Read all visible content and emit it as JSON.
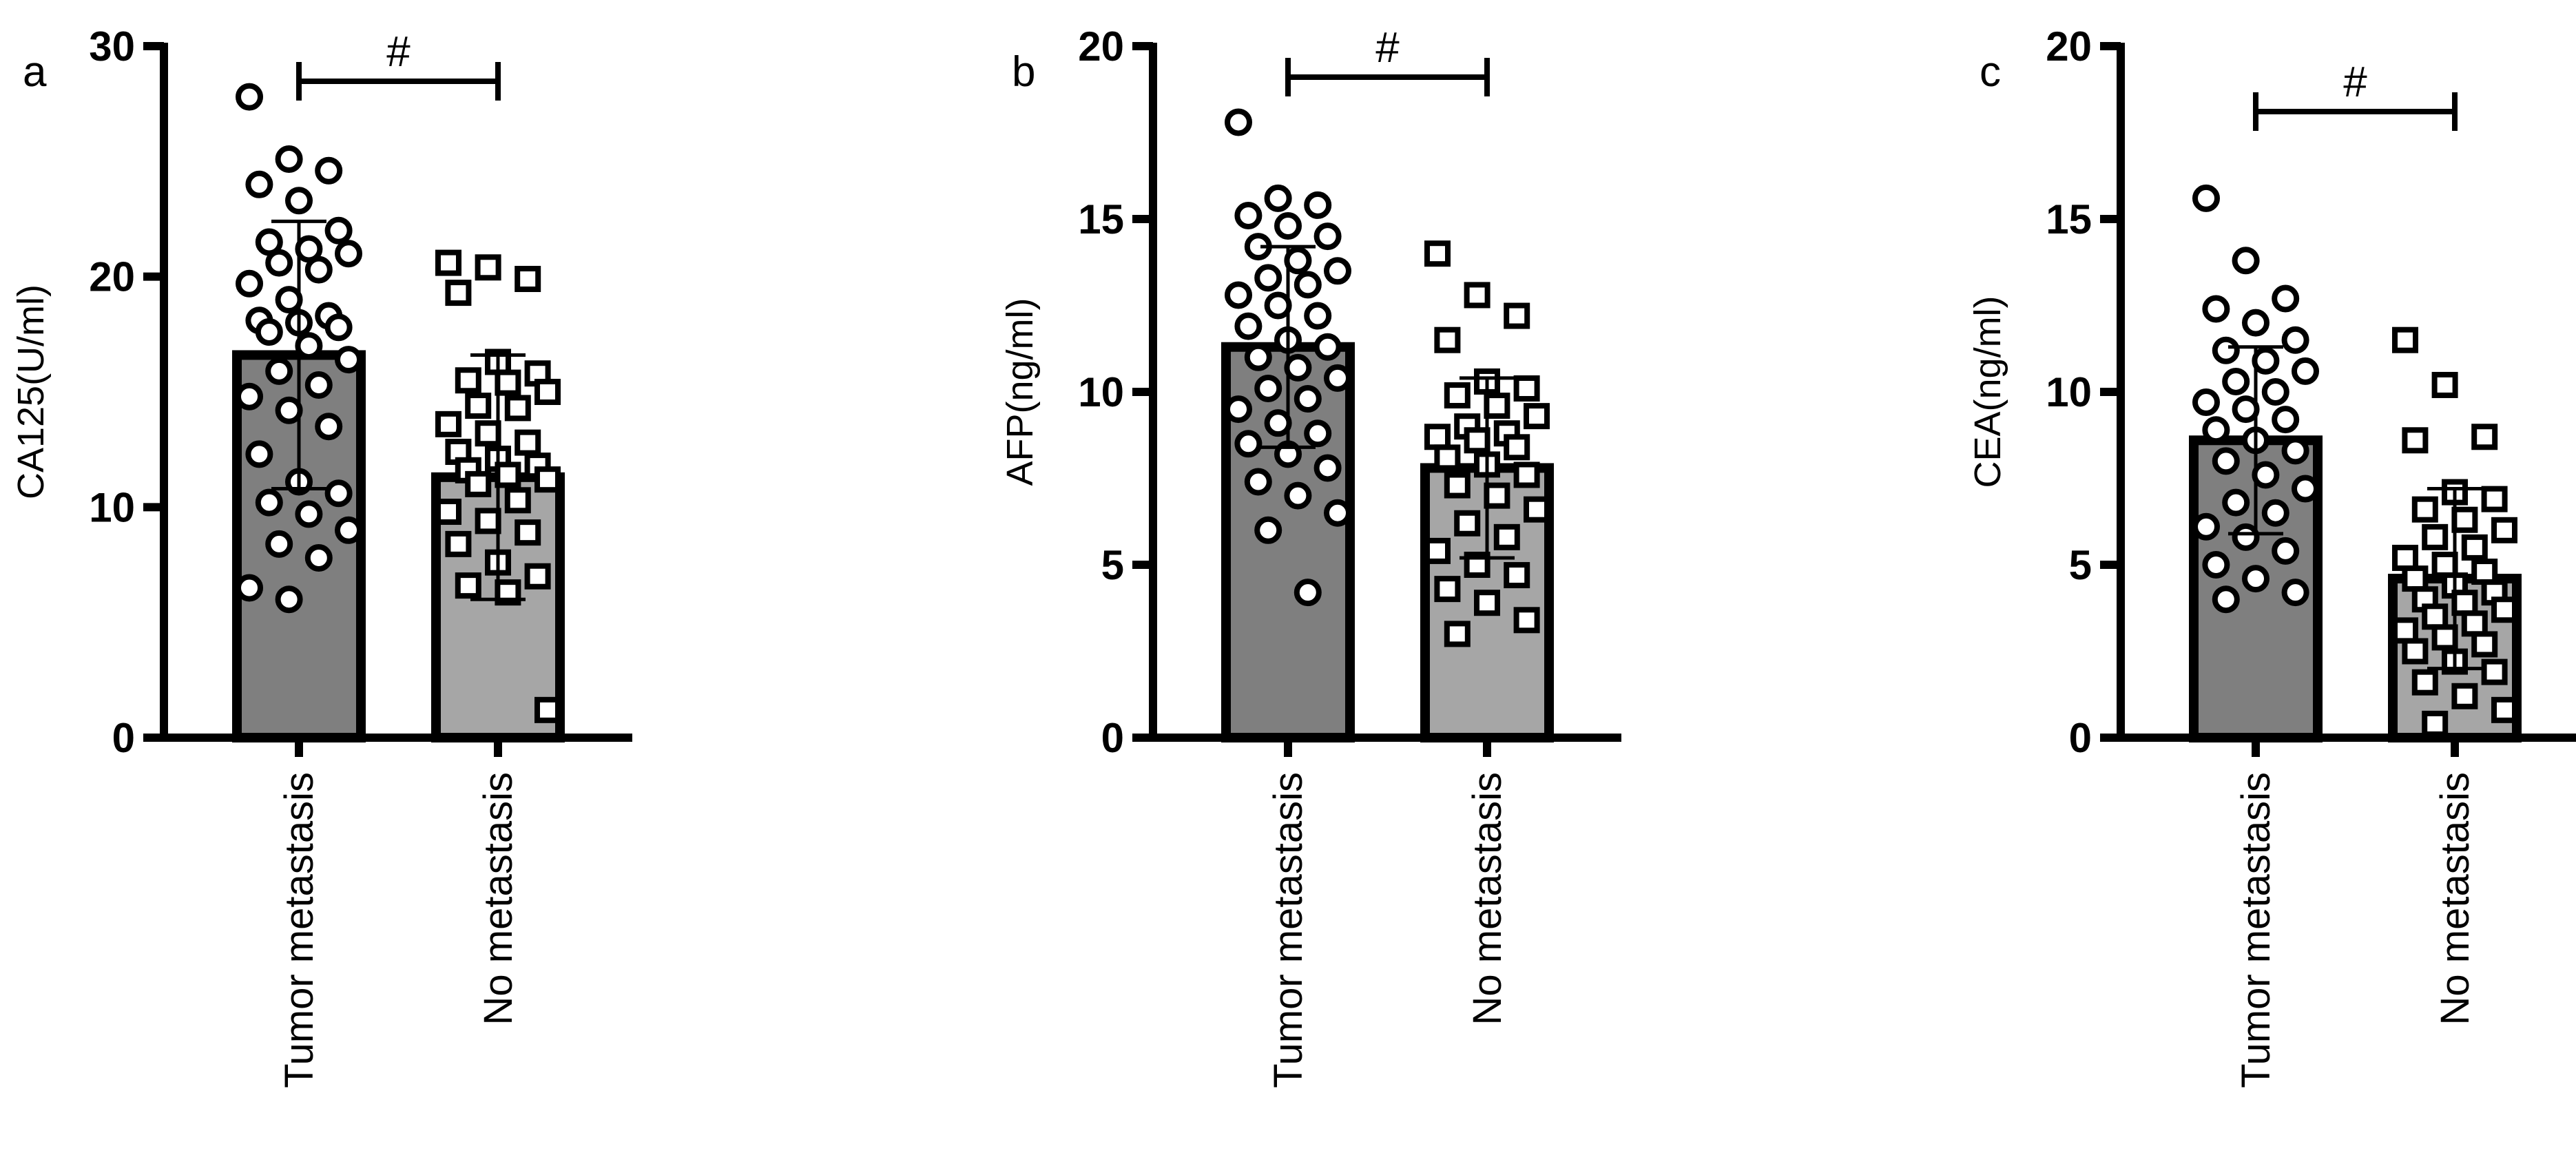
{
  "chart_data": [
    {
      "type": "bar",
      "panel_label": "a",
      "ylabel": "CA125(U/ml)",
      "categories": [
        "Tumor metastasis",
        "No metastasis"
      ],
      "values": [
        16.6,
        11.3
      ],
      "errors": [
        5.8,
        5.3
      ],
      "colors": [
        "#7f7f7f",
        "#a6a6a6"
      ],
      "markers": [
        "circle",
        "square"
      ],
      "points": [
        [
          27.8,
          25.1,
          24.6,
          24.0,
          23.3,
          22.0,
          21.5,
          21.2,
          21.0,
          20.6,
          20.3,
          19.7,
          19.0,
          18.3,
          18.1,
          18.0,
          17.8,
          17.6,
          17.0,
          16.4,
          15.9,
          15.3,
          14.8,
          14.2,
          13.5,
          12.3,
          11.1,
          10.6,
          10.2,
          9.7,
          9.0,
          8.4,
          7.8,
          6.5,
          6.0
        ],
        [
          20.6,
          20.4,
          19.9,
          19.3,
          16.3,
          15.8,
          15.5,
          15.4,
          15.0,
          14.4,
          14.3,
          13.6,
          13.2,
          12.8,
          12.4,
          12.1,
          11.8,
          11.6,
          11.4,
          11.2,
          11.0,
          10.3,
          9.8,
          9.4,
          8.9,
          8.4,
          7.6,
          7.0,
          6.6,
          6.3,
          1.2
        ]
      ],
      "annotation": "#",
      "ylim": [
        0,
        30
      ],
      "yticks": [
        0,
        10,
        20,
        30
      ]
    },
    {
      "type": "bar",
      "panel_label": "b",
      "ylabel": "AFP(ng/ml)",
      "categories": [
        "Tumor metastasis",
        "No metastasis"
      ],
      "values": [
        11.3,
        7.8
      ],
      "errors": [
        2.9,
        2.6
      ],
      "colors": [
        "#7f7f7f",
        "#a6a6a6"
      ],
      "markers": [
        "circle",
        "square"
      ],
      "points": [
        [
          17.8,
          15.6,
          15.4,
          15.1,
          14.8,
          14.5,
          14.2,
          13.8,
          13.5,
          13.3,
          13.1,
          12.8,
          12.5,
          12.2,
          11.9,
          11.5,
          11.3,
          11.0,
          10.7,
          10.4,
          10.1,
          9.8,
          9.5,
          9.1,
          8.8,
          8.5,
          8.2,
          7.8,
          7.4,
          7.0,
          6.5,
          6.0,
          4.2
        ],
        [
          14.0,
          12.8,
          12.2,
          11.5,
          10.3,
          10.1,
          9.9,
          9.6,
          9.3,
          9.0,
          8.8,
          8.7,
          8.6,
          8.4,
          8.1,
          7.9,
          7.6,
          7.3,
          7.0,
          6.6,
          6.2,
          5.8,
          5.4,
          5.0,
          4.7,
          4.3,
          3.9,
          3.4,
          3.0
        ]
      ],
      "annotation": "#",
      "ylim": [
        0,
        20
      ],
      "yticks": [
        0,
        5,
        10,
        15,
        20
      ]
    },
    {
      "type": "bar",
      "panel_label": "c",
      "ylabel": "CEA(ng/ml)",
      "categories": [
        "Tumor metastasis",
        "No metastasis"
      ],
      "values": [
        8.6,
        4.6
      ],
      "errors": [
        2.7,
        2.6
      ],
      "colors": [
        "#7f7f7f",
        "#a6a6a6"
      ],
      "markers": [
        "circle",
        "square"
      ],
      "points": [
        [
          15.6,
          13.8,
          12.7,
          12.4,
          12.0,
          11.5,
          11.2,
          10.9,
          10.6,
          10.3,
          10.0,
          9.7,
          9.5,
          9.2,
          8.9,
          8.6,
          8.3,
          8.0,
          7.6,
          7.2,
          6.8,
          6.5,
          6.1,
          5.8,
          5.4,
          5.0,
          4.6,
          4.2,
          4.0
        ],
        [
          11.5,
          10.2,
          8.7,
          8.6,
          7.1,
          6.9,
          6.6,
          6.3,
          6.0,
          5.8,
          5.5,
          5.2,
          5.0,
          4.8,
          4.6,
          4.4,
          4.2,
          4.0,
          3.9,
          3.7,
          3.5,
          3.3,
          3.1,
          2.9,
          2.7,
          2.5,
          2.2,
          1.9,
          1.6,
          1.2,
          0.8,
          0.4
        ]
      ],
      "annotation": "#",
      "ylim": [
        0,
        20
      ],
      "yticks": [
        0,
        5,
        10,
        15,
        20
      ]
    }
  ]
}
